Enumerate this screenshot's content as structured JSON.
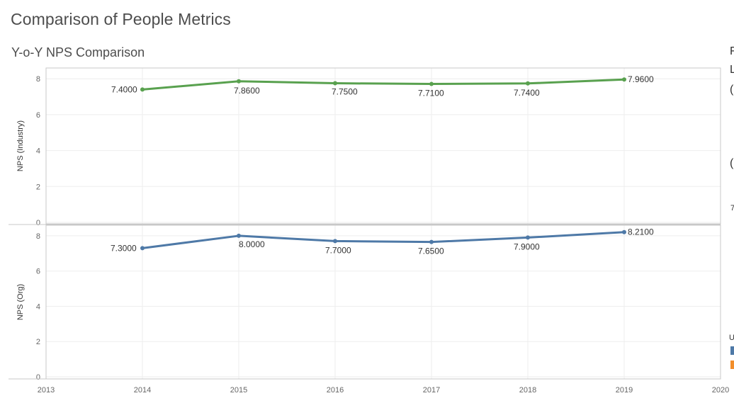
{
  "page": {
    "title": "Comparison of People Metrics",
    "subtitle": "Y-o-Y NPS Comparison"
  },
  "chart_data": {
    "type": "line",
    "x": [
      2014,
      2015,
      2016,
      2017,
      2018,
      2019
    ],
    "xlim": [
      2013,
      2020
    ],
    "xticks": [
      2013,
      2014,
      2015,
      2016,
      2017,
      2018,
      2019,
      2020
    ],
    "panels": [
      {
        "ylabel": "NPS (Industry)",
        "ylim": [
          0,
          8.6
        ],
        "yticks": [
          0,
          2,
          4,
          6,
          8
        ],
        "series": [
          {
            "color": "#59a14f",
            "values": [
              7.4,
              7.86,
              7.75,
              7.71,
              7.74,
              7.96
            ],
            "labels": [
              "7.4000",
              "7.8600",
              "7.7500",
              "7.7100",
              "7.7400",
              "7.9600"
            ]
          }
        ]
      },
      {
        "ylabel": "NPS (Org)",
        "ylim": [
          0,
          8.6
        ],
        "yticks": [
          0,
          2,
          4,
          6,
          8
        ],
        "series": [
          {
            "color": "#4e79a7",
            "values": [
              7.3,
              8.0,
              7.7,
              7.65,
              7.9,
              8.21
            ],
            "labels": [
              "7.3000",
              "8.0000",
              "7.7000",
              "7.6500",
              "7.9000",
              "8.2100"
            ]
          }
        ]
      }
    ],
    "grid": true
  },
  "right_edge": {
    "clipped_text": [
      "F",
      "L",
      "(",
      "(",
      "7",
      "U"
    ],
    "legend_colors": [
      "#4e79a7",
      "#f28e2b"
    ]
  }
}
